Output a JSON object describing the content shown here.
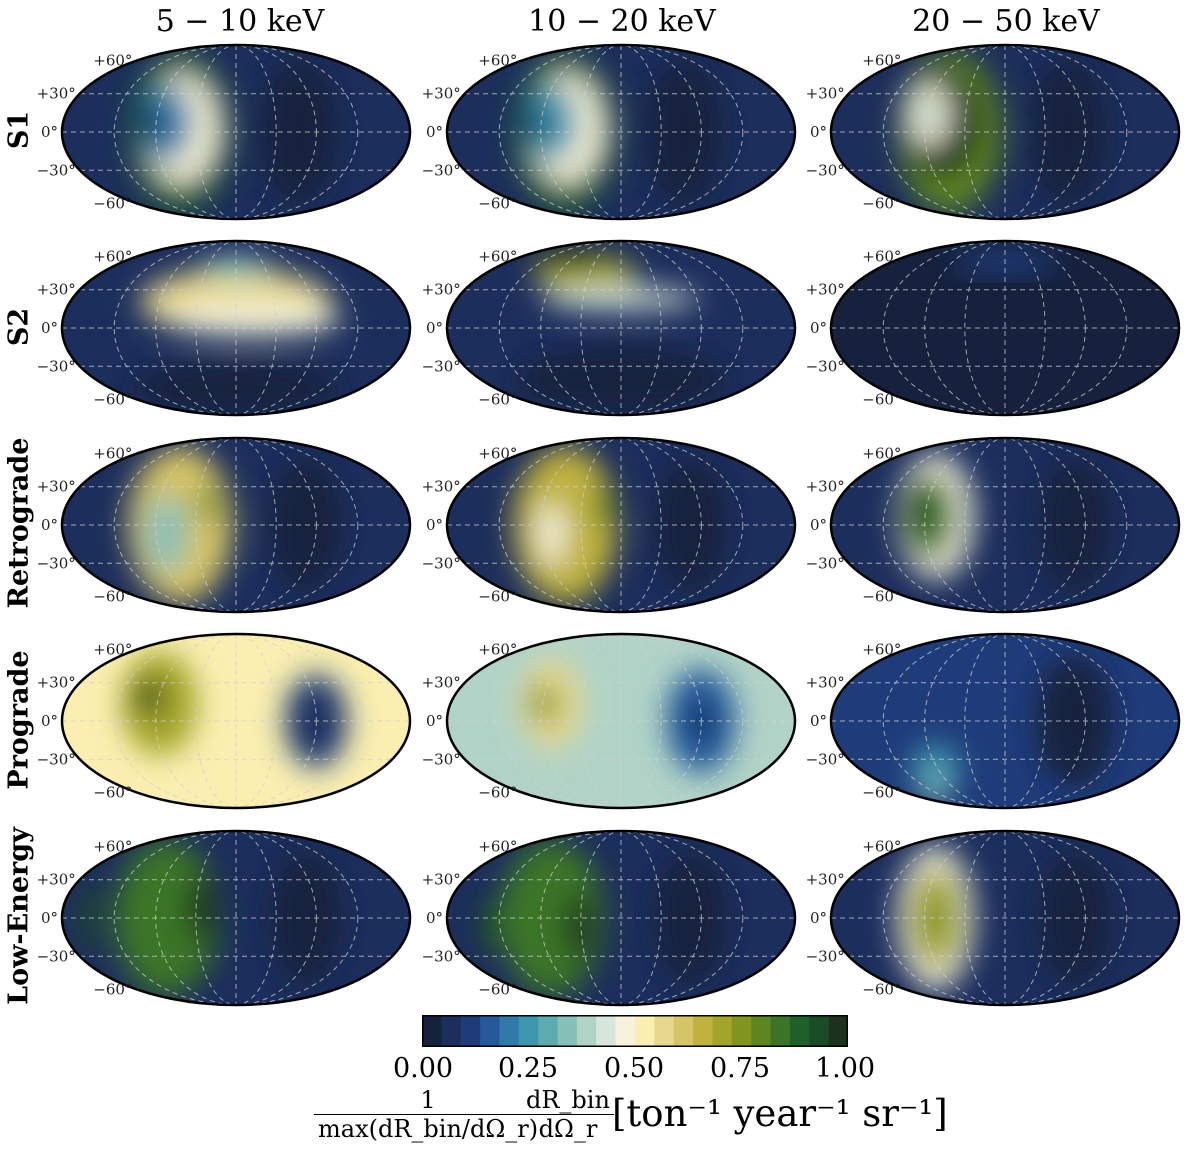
{
  "chart_data": {
    "type": "heatmap",
    "projection": "mollweide",
    "column_titles": [
      "5 − 10 keV",
      "10 − 20 keV",
      "20 − 50 keV"
    ],
    "row_labels": [
      "S1",
      "S2",
      "Retrograde",
      "Prograde",
      "Low-Energy"
    ],
    "latitude_labels": [
      "+60°",
      "+30°",
      "0°",
      "−30°",
      "−60°"
    ],
    "grid": true,
    "colormap": [
      "#16213d",
      "#1c2e5c",
      "#1f3c7a",
      "#24599a",
      "#2f7aa9",
      "#3c96ad",
      "#5cabaf",
      "#86c0b8",
      "#b1d3c7",
      "#d9e6dc",
      "#f6f3da",
      "#faefb0",
      "#e6d88c",
      "#d6c565",
      "#c0b23e",
      "#a3a52a",
      "#82951f",
      "#5d8520",
      "#3b7427",
      "#1f5f2a",
      "#1b4a27",
      "#1c321e"
    ],
    "colorbar": {
      "ticks": [
        "0.00",
        "0.25",
        "0.50",
        "0.75",
        "1.00"
      ],
      "range": [
        0,
        1
      ],
      "label_numerator_left": "1",
      "label_denominator_left": "max(dR_bin/dΩ_r)",
      "label_numerator_right": "dR_bin",
      "label_denominator_right": "dΩ_r",
      "label_units": "[ton⁻¹ year⁻¹ sr⁻¹]"
    }
  }
}
